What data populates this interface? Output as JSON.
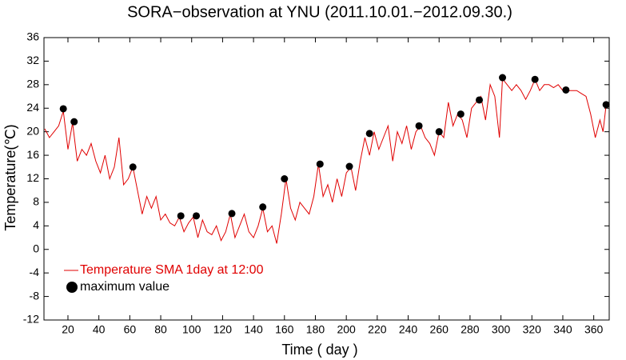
{
  "chart_data": {
    "type": "line",
    "title": "SORA−observation at YNU (2011.10.01.−2012.09.30.)",
    "x_label": "Time ( day )",
    "y_label": "Temperature(℃)",
    "xlim": [
      4.5,
      370
    ],
    "ylim": [
      -12,
      36
    ],
    "xticks": [
      20,
      40,
      60,
      80,
      100,
      120,
      140,
      160,
      180,
      200,
      220,
      240,
      260,
      280,
      300,
      320,
      340,
      360
    ],
    "yticks": [
      -12,
      -8,
      -4,
      0,
      4,
      8,
      12,
      16,
      20,
      24,
      28,
      32,
      36
    ],
    "legend": "lower left",
    "series": [
      {
        "name": "Temperature SMA 1day at 12:00",
        "color": "#e00000",
        "type": "line",
        "x": [
          5,
          8,
          11,
          14,
          17,
          20,
          23,
          26,
          29,
          32,
          35,
          38,
          41,
          44,
          47,
          50,
          53,
          56,
          59,
          62,
          65,
          68,
          71,
          74,
          77,
          80,
          83,
          86,
          89,
          92,
          95,
          98,
          101,
          104,
          107,
          110,
          113,
          116,
          119,
          122,
          125,
          128,
          131,
          134,
          137,
          140,
          143,
          146,
          149,
          152,
          155,
          158,
          161,
          164,
          167,
          170,
          173,
          176,
          179,
          182,
          185,
          188,
          191,
          194,
          197,
          200,
          203,
          206,
          209,
          212,
          215,
          218,
          221,
          224,
          227,
          230,
          233,
          236,
          239,
          242,
          245,
          248,
          251,
          254,
          257,
          260,
          263,
          266,
          269,
          272,
          275,
          278,
          281,
          284,
          287,
          290,
          293,
          296,
          299,
          301,
          304,
          307,
          310,
          313,
          316,
          319,
          322,
          325,
          328,
          331,
          334,
          337,
          340,
          343,
          346,
          349,
          352,
          355,
          358,
          361,
          364,
          366,
          368
        ],
        "values": [
          20.5,
          19,
          20,
          21,
          23.5,
          17,
          21.5,
          15,
          17,
          16,
          18,
          15,
          13,
          16,
          12,
          14,
          19,
          11,
          12,
          14,
          10,
          6,
          9,
          7,
          9,
          5,
          6,
          4.5,
          4,
          5.5,
          3,
          4.5,
          5.5,
          2,
          5,
          3,
          2.5,
          4,
          1.5,
          3,
          6,
          2,
          4,
          6,
          3,
          2,
          4,
          7,
          3,
          4,
          1,
          6,
          12,
          7,
          5,
          8,
          7,
          6,
          9,
          14.5,
          9,
          11,
          8,
          12,
          9,
          13,
          14,
          10,
          15,
          19,
          16,
          20,
          17,
          19,
          21,
          15,
          20,
          18,
          21,
          17,
          20,
          21,
          19,
          18,
          16,
          20,
          19,
          25,
          21,
          23,
          22,
          19,
          24,
          25,
          26,
          22,
          28,
          26,
          19,
          29,
          28,
          27,
          28,
          27,
          25.5,
          27,
          28.9,
          27,
          28,
          28,
          27.5,
          28,
          27,
          27,
          27,
          27,
          26.5,
          26,
          23,
          19,
          22,
          20,
          24.5
        ]
      },
      {
        "name": "maximum value",
        "color": "#000000",
        "type": "scatter",
        "x": [
          17,
          24,
          62,
          93,
          103,
          126,
          146,
          160,
          183,
          202,
          215,
          247,
          260,
          274,
          286,
          301,
          322,
          342,
          368
        ],
        "values": [
          23.9,
          21.7,
          14.0,
          5.7,
          5.7,
          6.1,
          7.2,
          12.0,
          14.5,
          14.1,
          19.7,
          21.0,
          20.0,
          23.0,
          25.4,
          29.2,
          28.9,
          27.1,
          24.6
        ]
      }
    ]
  }
}
